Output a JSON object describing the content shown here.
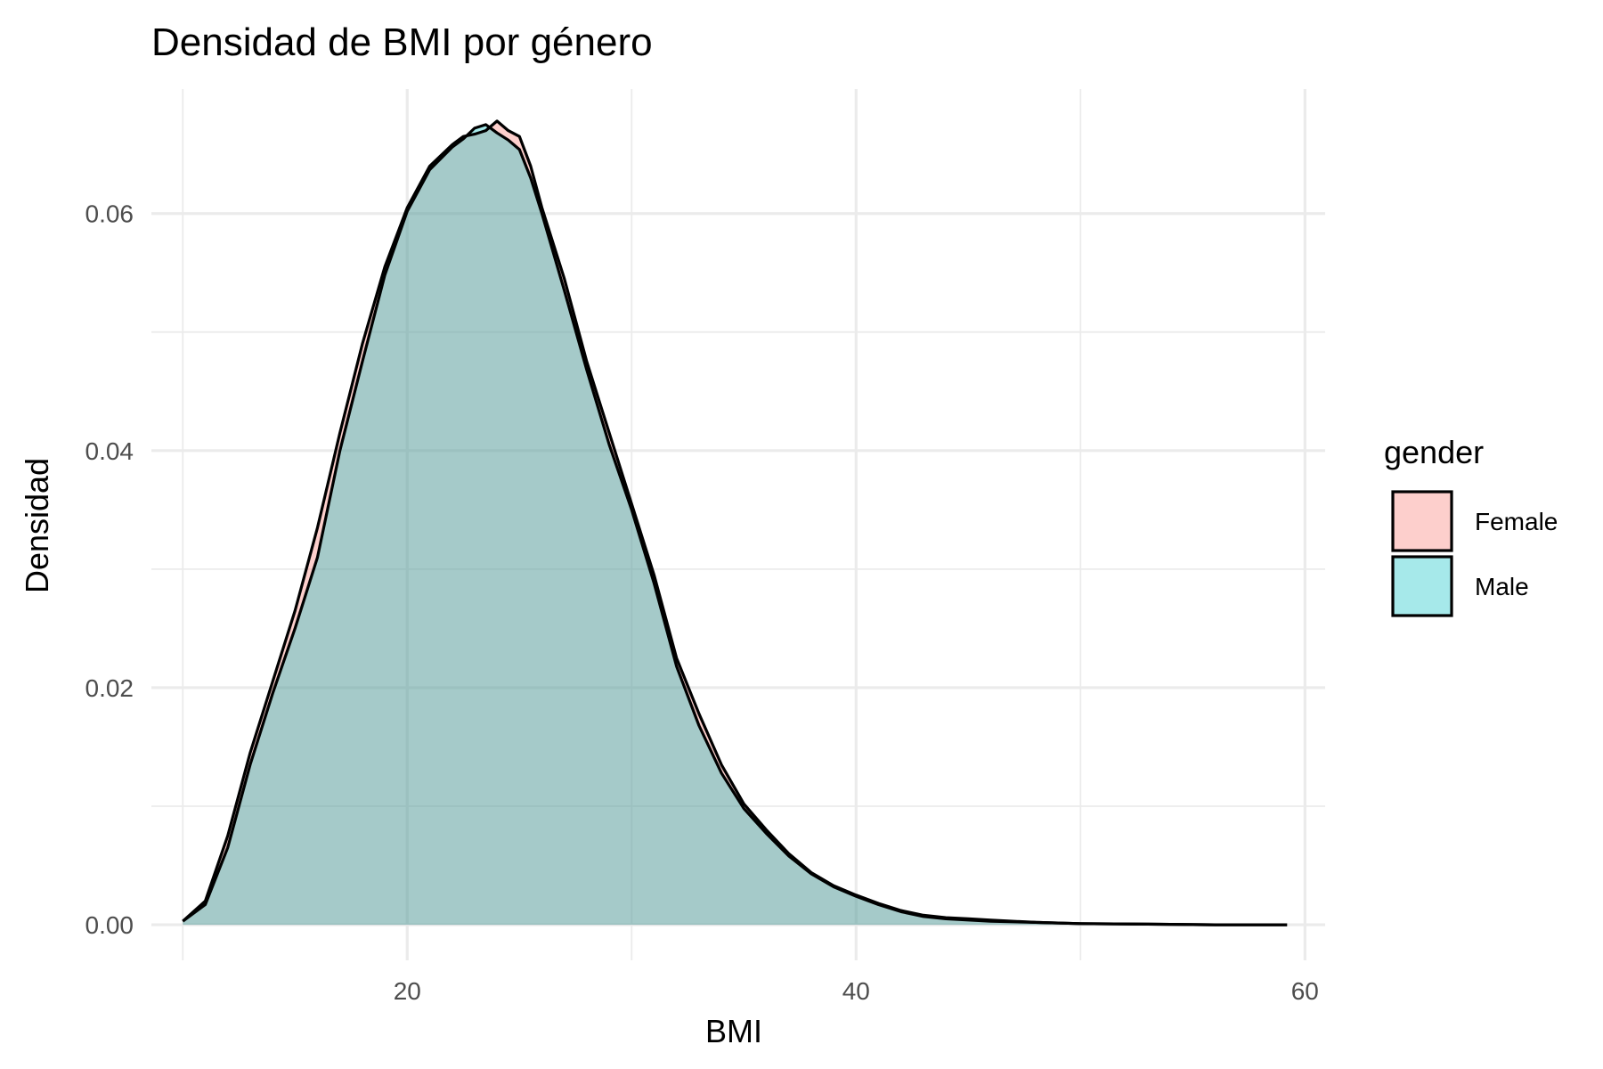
{
  "chart_data": {
    "type": "area",
    "title": "Densidad de BMI por género",
    "xlabel": "BMI",
    "ylabel": "Densidad",
    "xlim": [
      8.6,
      60.9
    ],
    "ylim": [
      -0.003,
      0.0705
    ],
    "x_ticks": [
      20,
      40,
      60
    ],
    "x_tick_labels": [
      "20",
      "40",
      "60"
    ],
    "x_minor": [
      10,
      30,
      50
    ],
    "y_ticks": [
      0.0,
      0.02,
      0.04,
      0.06
    ],
    "y_tick_labels": [
      "0.00",
      "0.02",
      "0.04",
      "0.06"
    ],
    "y_minor": [
      0.01,
      0.03,
      0.05
    ],
    "grid": true,
    "legend": {
      "title": "gender",
      "position": "right"
    },
    "series": [
      {
        "name": "Female",
        "color": "#F8766D",
        "x": [
          10,
          11,
          12,
          13,
          14,
          15,
          16,
          17,
          18,
          19,
          20,
          21,
          22,
          22.5,
          23,
          23.5,
          24,
          24.5,
          25,
          25.5,
          26,
          27,
          28,
          29,
          30,
          31,
          32,
          33,
          34,
          35,
          36,
          37,
          38,
          39,
          40,
          41,
          42,
          43,
          44,
          45,
          46,
          48,
          50,
          53,
          56,
          59.2
        ],
        "y": [
          0.0003,
          0.002,
          0.0075,
          0.0145,
          0.0205,
          0.0265,
          0.0335,
          0.0415,
          0.049,
          0.0555,
          0.0605,
          0.064,
          0.0658,
          0.0665,
          0.0667,
          0.067,
          0.0678,
          0.067,
          0.0665,
          0.064,
          0.0605,
          0.0545,
          0.0475,
          0.0415,
          0.0355,
          0.0295,
          0.0225,
          0.0178,
          0.0135,
          0.0102,
          0.008,
          0.006,
          0.0044,
          0.0033,
          0.0025,
          0.0018,
          0.0012,
          0.0008,
          0.0006,
          0.0005,
          0.0004,
          0.0002,
          0.0001,
          5e-05,
          0.0,
          0.0
        ]
      },
      {
        "name": "Male",
        "color": "#00BFC4",
        "x": [
          10,
          11,
          12,
          13,
          14,
          15,
          16,
          17,
          18,
          19,
          20,
          21,
          22,
          22.5,
          23,
          23.5,
          24,
          24.5,
          25,
          25.5,
          26,
          27,
          28,
          29,
          30,
          31,
          32,
          33,
          34,
          35,
          36,
          37,
          38,
          39,
          40,
          41,
          42,
          43,
          44,
          45,
          46,
          48,
          50,
          53,
          56,
          59.2
        ],
        "y": [
          0.0003,
          0.0017,
          0.0065,
          0.0135,
          0.0195,
          0.025,
          0.031,
          0.04,
          0.0475,
          0.0548,
          0.0602,
          0.0637,
          0.0656,
          0.0663,
          0.0672,
          0.0675,
          0.0668,
          0.0662,
          0.0654,
          0.063,
          0.06,
          0.0535,
          0.0468,
          0.0405,
          0.035,
          0.0288,
          0.0218,
          0.0168,
          0.0128,
          0.0098,
          0.0077,
          0.0058,
          0.0043,
          0.0032,
          0.0024,
          0.0017,
          0.0011,
          0.0007,
          0.0005,
          0.0004,
          0.0003,
          0.0002,
          0.0001,
          5e-05,
          0.0,
          0.0
        ]
      }
    ]
  }
}
